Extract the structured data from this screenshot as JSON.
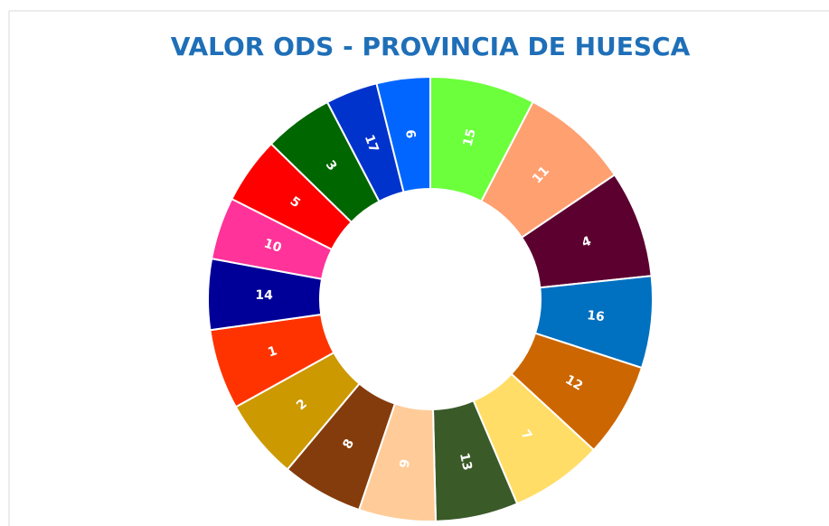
{
  "chart_data": {
    "type": "donut",
    "title": "VALOR ODS - PROVINCIA DE HUESCA",
    "categories": [
      "15",
      "11",
      "4",
      "16",
      "12",
      "7",
      "13",
      "9",
      "8",
      "2",
      "1",
      "14",
      "10",
      "5",
      "3",
      "17",
      "6"
    ],
    "values": [
      27.5,
      28.5,
      28,
      24,
      24.7,
      24.3,
      21.6,
      20.1,
      21.3,
      21,
      21,
      18.5,
      16.3,
      17.5,
      18.1,
      13.6,
      14
    ],
    "colors": [
      "#6cff3c",
      "#ffa070",
      "#5c0030",
      "#0070c0",
      "#cc6600",
      "#ffdd66",
      "#3a5a28",
      "#ffcc99",
      "#843c0c",
      "#cc9900",
      "#ff3300",
      "#000099",
      "#ff3399",
      "#ff0000",
      "#006600",
      "#0033cc",
      "#0066ff"
    ]
  }
}
